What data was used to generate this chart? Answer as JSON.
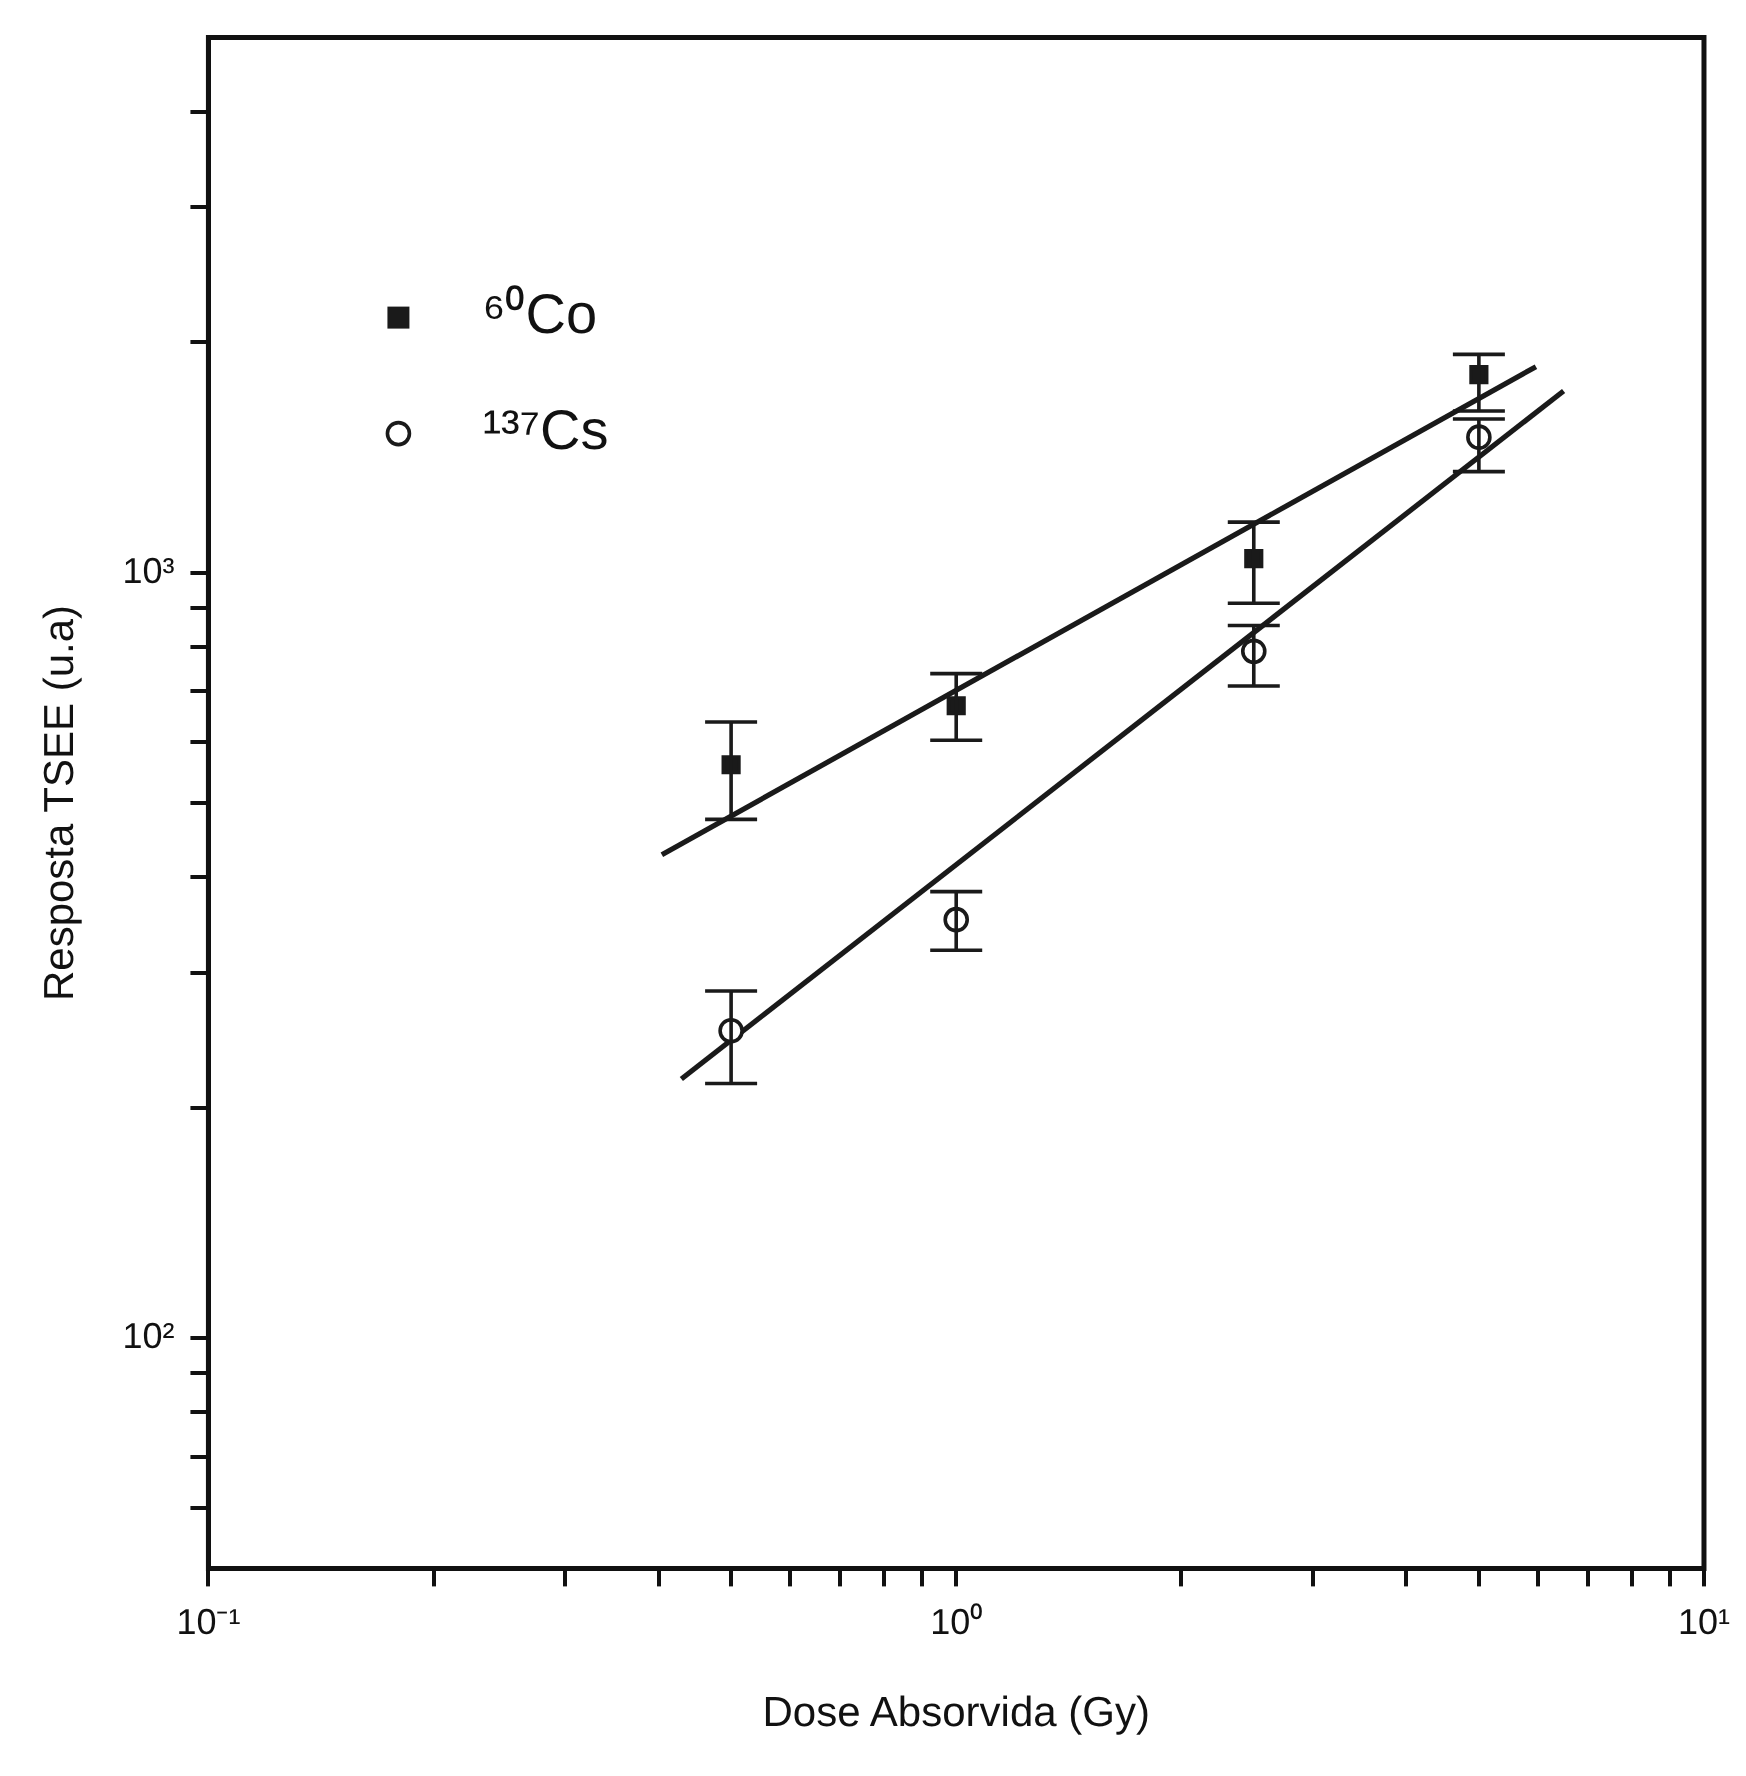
{
  "chart_data": {
    "type": "scatter",
    "xlabel": "Dose Absorvida (Gy)",
    "ylabel": "Resposta TSEE (u.a)",
    "log": "xy",
    "grid": false,
    "legend": "top left",
    "xlim": [
      0.1,
      10
    ],
    "ylim": [
      50,
      5000
    ],
    "xticks": [
      {
        "value": 0.1,
        "label": "10⁻¹"
      },
      {
        "value": 0.2,
        "label": null
      },
      {
        "value": 0.3,
        "label": null
      },
      {
        "value": 0.4,
        "label": null
      },
      {
        "value": 0.5,
        "label": null
      },
      {
        "value": 0.6,
        "label": null
      },
      {
        "value": 0.7,
        "label": null
      },
      {
        "value": 0.8,
        "label": null
      },
      {
        "value": 0.9,
        "label": null
      },
      {
        "value": 1,
        "label": "10⁰"
      },
      {
        "value": 2,
        "label": null
      },
      {
        "value": 3,
        "label": null
      },
      {
        "value": 4,
        "label": null
      },
      {
        "value": 5,
        "label": null
      },
      {
        "value": 6,
        "label": null
      },
      {
        "value": 7,
        "label": null
      },
      {
        "value": 8,
        "label": null
      },
      {
        "value": 9,
        "label": null
      },
      {
        "value": 10,
        "label": "10¹"
      }
    ],
    "yticks": [
      {
        "value": 60,
        "label": null
      },
      {
        "value": 70,
        "label": null
      },
      {
        "value": 80,
        "label": null
      },
      {
        "value": 90,
        "label": null
      },
      {
        "value": 100,
        "label": "10²"
      },
      {
        "value": 200,
        "label": null
      },
      {
        "value": 300,
        "label": null
      },
      {
        "value": 400,
        "label": null
      },
      {
        "value": 500,
        "label": null
      },
      {
        "value": 600,
        "label": null
      },
      {
        "value": 700,
        "label": null
      },
      {
        "value": 800,
        "label": null
      },
      {
        "value": 900,
        "label": null
      },
      {
        "value": 1000,
        "label": "10³"
      },
      {
        "value": 2000,
        "label": null
      },
      {
        "value": 3000,
        "label": null
      },
      {
        "value": 4000,
        "label": null
      }
    ],
    "series": [
      {
        "name": "⁶⁰Co",
        "color": "#1a1a1a",
        "marker": "square",
        "x": [
          0.5,
          1,
          2.5,
          5
        ],
        "values": [
          561,
          670,
          1043,
          1814
        ],
        "errors": [
          [
            476,
            638
          ],
          [
            604,
            738
          ],
          [
            912,
            1164
          ],
          [
            1626,
            1928
          ]
        ]
      },
      {
        "name": "¹³⁷Cs",
        "color": "#1a1a1a",
        "marker": "circle",
        "x": [
          0.5,
          1,
          2.5,
          5
        ],
        "values": [
          252,
          352,
          789,
          1503
        ],
        "errors": [
          [
            215,
            284
          ],
          [
            321,
            383
          ],
          [
            711,
            853
          ],
          [
            1355,
            1587
          ]
        ]
      },
      {
        "type": "line",
        "color": "#1a1a1a",
        "marker": "none",
        "x": [
          0.404,
          5.96
        ],
        "values": [
          428,
          1858
        ]
      },
      {
        "type": "line",
        "color": "#1a1a1a",
        "marker": "none",
        "x": [
          0.429,
          6.49
        ],
        "values": [
          218,
          1727
        ]
      }
    ]
  }
}
